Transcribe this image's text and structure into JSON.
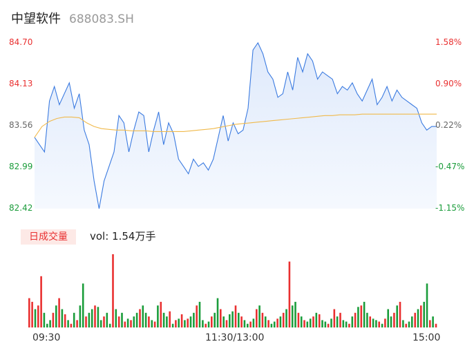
{
  "header": {
    "name": "中望软件",
    "code": "688083.SH"
  },
  "chart_data": [
    {
      "type": "line",
      "x_ticks": [
        "09:30",
        "11:30/13:00",
        "15:00"
      ],
      "y_left_ticks": [
        "84.70",
        "84.13",
        "83.56",
        "82.99",
        "82.42"
      ],
      "y_right_ticks": [
        "1.58%",
        "0.90%",
        "0.22%",
        "-0.47%",
        "-1.15%"
      ],
      "ylim": [
        82.42,
        84.7
      ],
      "series": [
        {
          "values": [
            83.4,
            83.3,
            83.2,
            83.9,
            84.1,
            83.85,
            84.0,
            84.15,
            83.8,
            84.0,
            83.5,
            83.3,
            82.8,
            82.42,
            82.8,
            83.0,
            83.2,
            83.7,
            83.6,
            83.2,
            83.5,
            83.75,
            83.7,
            83.2,
            83.5,
            83.75,
            83.3,
            83.6,
            83.45,
            83.1,
            83.0,
            82.9,
            83.1,
            83.0,
            83.05,
            82.95,
            83.1,
            83.4,
            83.7,
            83.35,
            83.6,
            83.45,
            83.5,
            83.8,
            84.6,
            84.7,
            84.55,
            84.3,
            84.2,
            83.95,
            84.0,
            84.3,
            84.05,
            84.5,
            84.3,
            84.55,
            84.45,
            84.2,
            84.3,
            84.25,
            84.2,
            84.0,
            84.1,
            84.05,
            84.15,
            84.0,
            83.9,
            84.05,
            84.2,
            83.85,
            83.95,
            84.1,
            83.9,
            84.05,
            83.95,
            83.9,
            83.85,
            83.8,
            83.6,
            83.5,
            83.55,
            83.55
          ],
          "color": "#3a7ae0"
        },
        {
          "values": [
            83.4,
            83.55,
            83.62,
            83.66,
            83.68,
            83.68,
            83.67,
            83.6,
            83.55,
            83.52,
            83.51,
            83.5,
            83.5,
            83.49,
            83.49,
            83.49,
            83.48,
            83.48,
            83.48,
            83.48,
            83.48,
            83.49,
            83.5,
            83.51,
            83.52,
            83.54,
            83.56,
            83.58,
            83.59,
            83.6,
            83.61,
            83.62,
            83.63,
            83.64,
            83.65,
            83.66,
            83.67,
            83.68,
            83.69,
            83.7,
            83.7,
            83.71,
            83.71,
            83.71,
            83.72,
            83.72,
            83.72,
            83.72,
            83.72,
            83.72,
            83.72,
            83.72,
            83.72,
            83.72,
            83.72
          ],
          "color": "#f0b94a"
        }
      ]
    },
    {
      "type": "bar",
      "values": [
        40,
        35,
        25,
        30,
        70,
        20,
        5,
        10,
        20,
        30,
        40,
        25,
        18,
        10,
        5,
        20,
        10,
        30,
        60,
        15,
        20,
        25,
        30,
        28,
        10,
        15,
        20,
        5,
        100,
        25,
        15,
        20,
        8,
        12,
        10,
        15,
        20,
        25,
        30,
        20,
        15,
        10,
        8,
        30,
        35,
        20,
        15,
        22,
        5,
        10,
        12,
        18,
        10,
        12,
        15,
        20,
        30,
        35,
        10,
        5,
        8,
        15,
        20,
        40,
        25,
        15,
        10,
        18,
        22,
        30,
        20,
        15,
        10,
        5,
        8,
        12,
        25,
        30,
        20,
        15,
        10,
        5,
        8,
        12,
        15,
        20,
        25,
        90,
        30,
        35,
        20,
        15,
        10,
        8,
        12,
        15,
        20,
        18,
        10,
        8,
        5,
        12,
        25,
        15,
        20,
        10,
        8,
        5,
        15,
        20,
        28,
        30,
        35,
        20,
        15,
        12,
        10,
        8,
        5,
        12,
        25,
        15,
        20,
        30,
        35,
        10,
        5,
        8,
        15,
        20,
        25,
        30,
        35,
        60,
        10,
        15,
        5
      ],
      "colors": [
        "r",
        "r",
        "g",
        "r",
        "r",
        "g",
        "g",
        "g",
        "r",
        "g",
        "r",
        "g",
        "r",
        "g",
        "r",
        "g",
        "r",
        "g",
        "g",
        "r",
        "g",
        "g",
        "r",
        "g",
        "g",
        "r",
        "g",
        "g",
        "r",
        "g",
        "r",
        "g",
        "r",
        "g",
        "r",
        "g",
        "g",
        "r",
        "g",
        "g",
        "r",
        "g",
        "r",
        "g",
        "r",
        "g",
        "g",
        "r",
        "g",
        "r",
        "g",
        "r",
        "g",
        "r",
        "g",
        "g",
        "r",
        "g",
        "g",
        "r",
        "g",
        "r",
        "g",
        "g",
        "r",
        "g",
        "r",
        "g",
        "g",
        "r",
        "g",
        "r",
        "g",
        "g",
        "r",
        "g",
        "r",
        "g",
        "r",
        "g",
        "r",
        "g",
        "g",
        "r",
        "g",
        "r",
        "g",
        "r",
        "g",
        "g",
        "r",
        "g",
        "r",
        "g",
        "g",
        "r",
        "g",
        "r",
        "g",
        "g",
        "r",
        "g",
        "r",
        "g",
        "r",
        "g",
        "g",
        "r",
        "g",
        "r",
        "g",
        "r",
        "g",
        "g",
        "r",
        "g",
        "g",
        "r",
        "g",
        "r",
        "g",
        "g",
        "r",
        "g",
        "r",
        "g",
        "r",
        "g",
        "g",
        "r",
        "g",
        "r",
        "g",
        "g",
        "r",
        "g",
        "r"
      ]
    }
  ],
  "volume": {
    "badge": "日成交量",
    "text": "vol: 1.54万手"
  }
}
